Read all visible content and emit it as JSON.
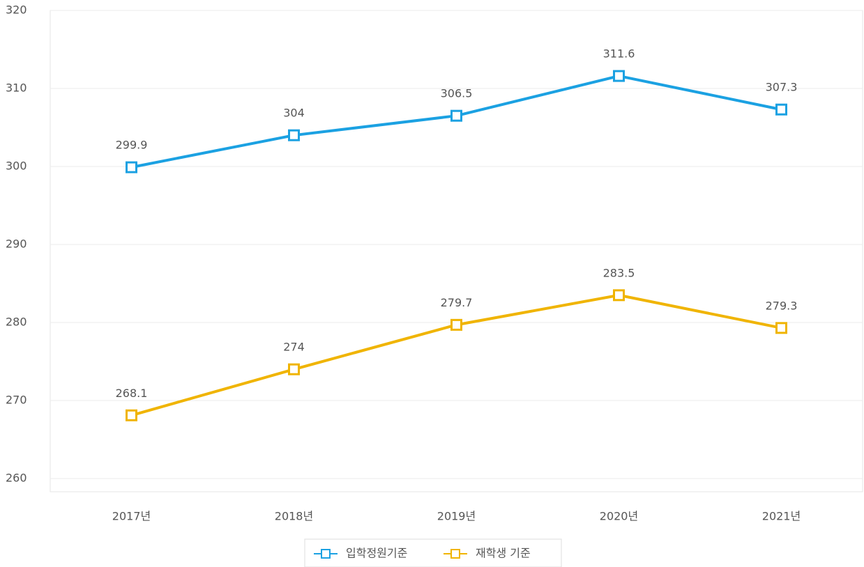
{
  "chart_data": {
    "type": "line",
    "categories": [
      "2017년",
      "2018년",
      "2019년",
      "2020년",
      "2021년"
    ],
    "series": [
      {
        "name": "입학정원기준",
        "color": "#1ba1e2",
        "values": [
          299.9,
          304,
          306.5,
          311.6,
          307.3
        ]
      },
      {
        "name": "재학생 기준",
        "color": "#f0b400",
        "values": [
          268.1,
          274,
          279.7,
          283.5,
          279.3
        ]
      }
    ],
    "ylim": [
      260,
      320
    ],
    "yticks": [
      260,
      270,
      280,
      290,
      300,
      310,
      320
    ],
    "grid": true,
    "legend": "bottom"
  }
}
